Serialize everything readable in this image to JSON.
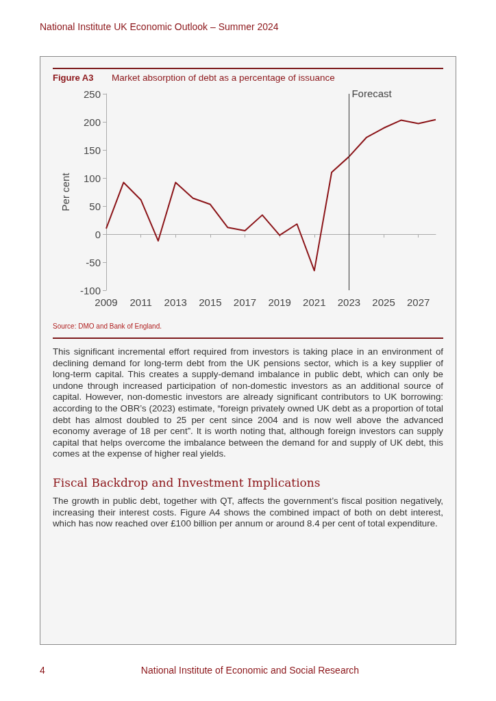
{
  "chart_data": {
    "type": "line",
    "title": "Market absorption of debt as a percentage of issuance",
    "ylabel": "Per cent",
    "categories": [
      "2009",
      null,
      "2011",
      null,
      "2013",
      null,
      "2015",
      null,
      "2017",
      null,
      "2019",
      null,
      "2021",
      null,
      "2023",
      null,
      "2025",
      null,
      "2027",
      null
    ],
    "series": [
      {
        "color": "#8b1418",
        "values": [
          10,
          92,
          61,
          -12,
          92,
          64,
          53,
          12,
          6,
          34,
          -2,
          18,
          -65,
          110,
          138,
          172,
          189,
          203,
          197,
          204
        ]
      }
    ],
    "ylim": [
      -100,
      250
    ],
    "yticks": [
      -100,
      -50,
      0,
      50,
      100,
      150,
      200,
      250
    ],
    "ref_lines": [
      {
        "axis": "x",
        "value": "2023",
        "label": "Forecast",
        "color": "#333333"
      }
    ],
    "grid": false,
    "marker": "none",
    "line_style": "solid",
    "annotations": [
      "National Institute UK Economic Outlook – Summer 2024",
      "Figure A3",
      "Source: DMO and Bank of England.",
      "This significant incremental effort required from investors is taking place in an environment of declining demand for long-term debt from the UK pensions sector, which is a key supplier of long-term capital. This creates a supply-demand imbalance in public debt, which can only be undone through increased participation of non-domestic investors as an additional source of capital. However, non-domestic investors are already significant contributors to UK borrowing: according to the OBR’s (2023) estimate, “foreign privately owned UK debt as a proportion of total debt has almost doubled to 25 per cent since 2004 and is now well above the advanced economy average of 18 per cent”. It is worth noting that, although foreign investors can supply capital that helps overcome the imbalance between the demand for and supply of UK debt, this comes at the expense of higher real yields.",
      "Fiscal Backdrop and Investment Implications",
      "The growth in public debt, together with QT, affects the government’s fiscal position negatively, increasing their interest costs. Figure A4 shows the combined impact of both on debt interest, which has now reached over £100 billion per annum or around 8.4 per cent of total expenditure.",
      "4",
      "National Institute of Economic and Social Research"
    ]
  }
}
